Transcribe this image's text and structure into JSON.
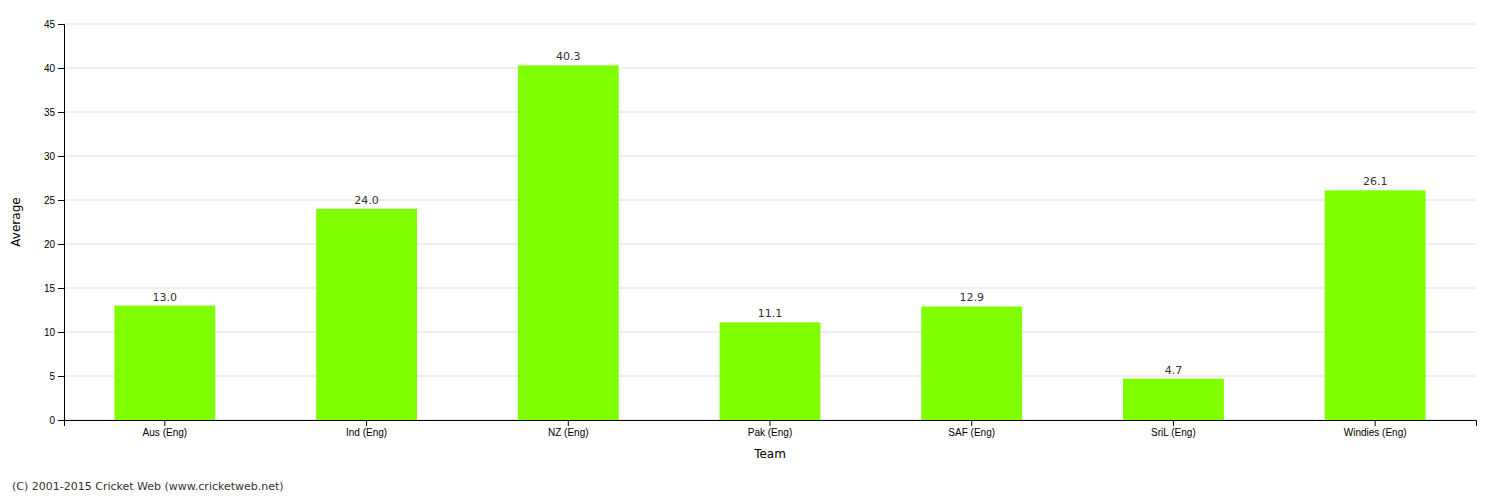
{
  "chart_data": {
    "type": "bar",
    "categories": [
      "Aus (Eng)",
      "Ind (Eng)",
      "NZ (Eng)",
      "Pak (Eng)",
      "SAF (Eng)",
      "SriL (Eng)",
      "Windies (Eng)"
    ],
    "values": [
      13.0,
      24.0,
      40.3,
      11.1,
      12.9,
      4.7,
      26.1
    ],
    "value_labels": [
      "13.0",
      "24.0",
      "40.3",
      "11.1",
      "12.9",
      "4.7",
      "26.1"
    ],
    "data_labels": true,
    "color": "#7fff00",
    "xlabel": "Team",
    "ylabel": "Average",
    "ylim": [
      0,
      45
    ],
    "yticks": [
      0,
      5,
      10,
      15,
      20,
      25,
      30,
      35,
      40,
      45
    ],
    "grid": true,
    "annotations": [
      "(C) 2001-2015 Cricket Web (www.cricketweb.net)"
    ]
  }
}
